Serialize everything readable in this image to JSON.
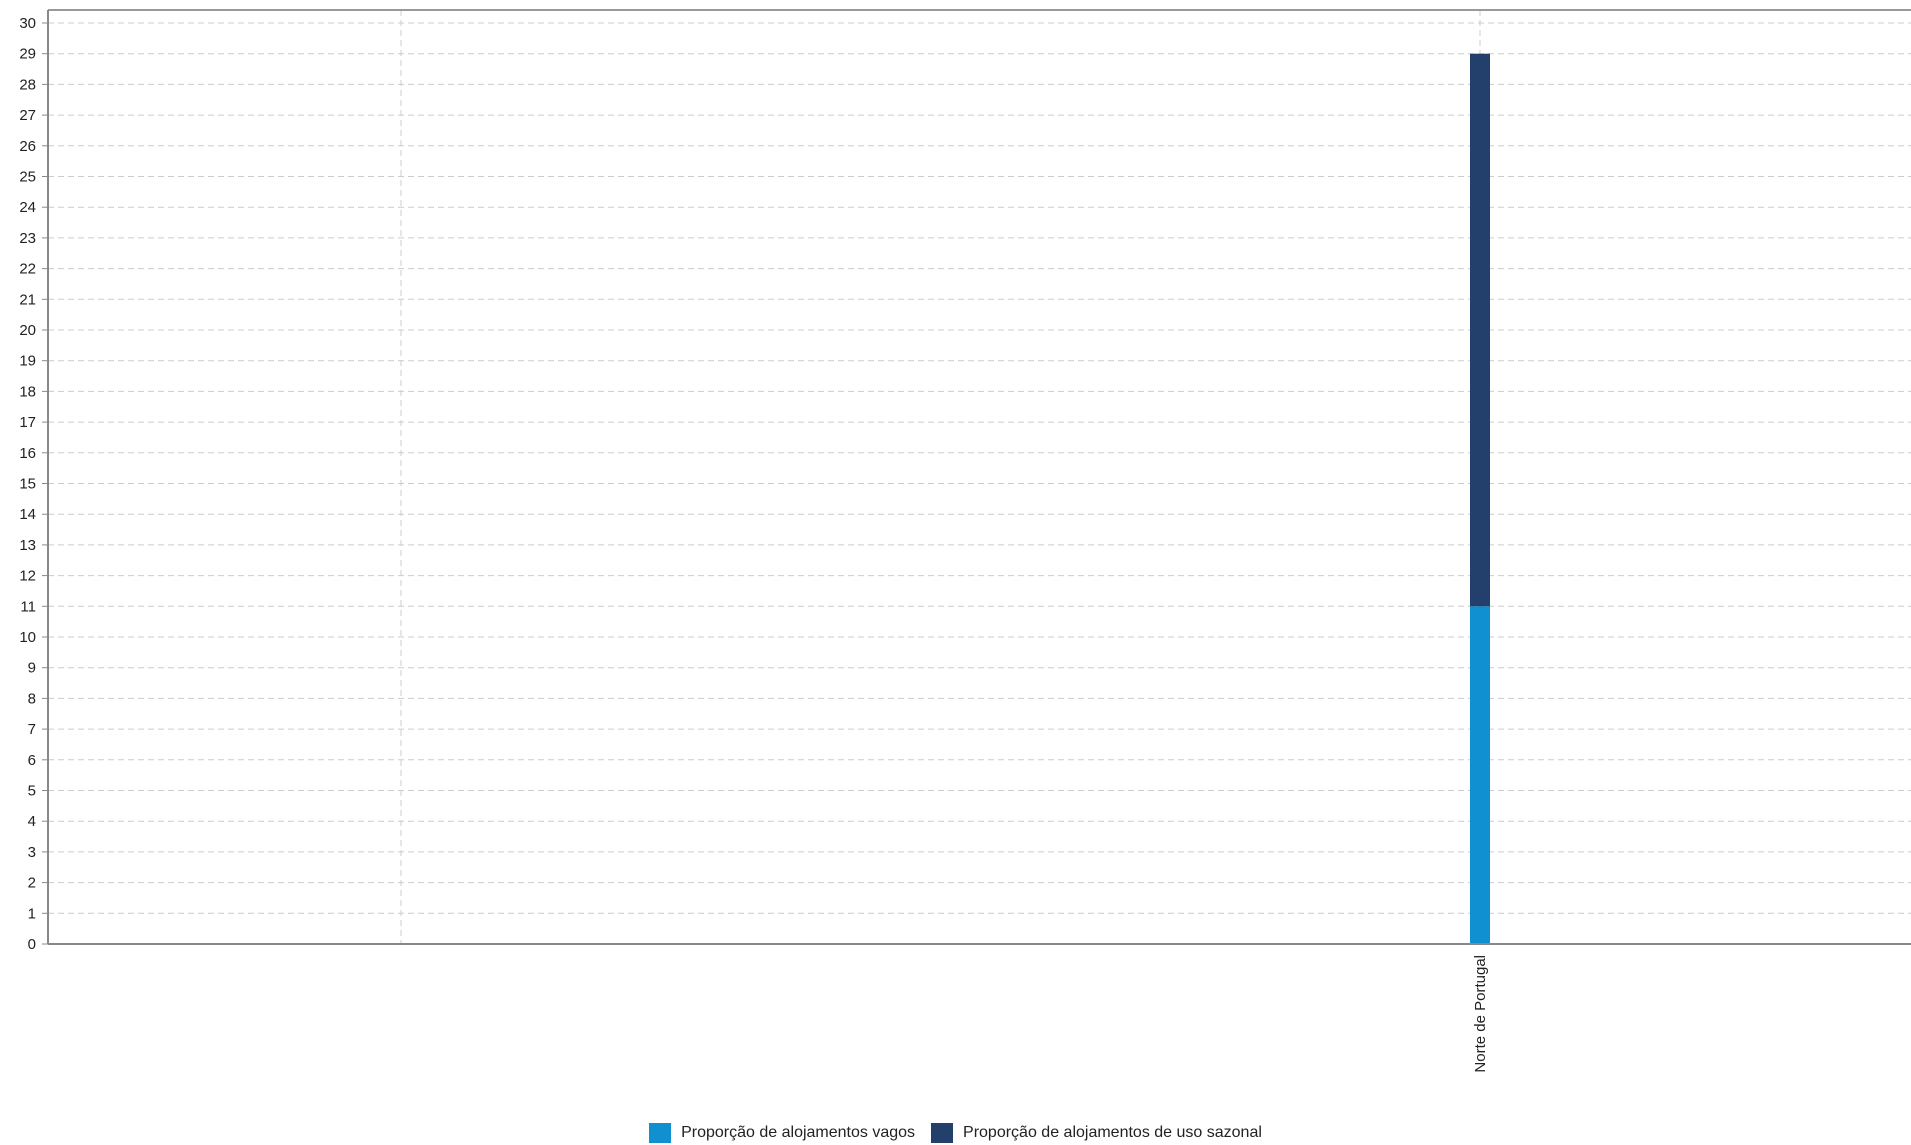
{
  "chart_data": {
    "type": "bar",
    "stacked": true,
    "categories": [
      "",
      "Norte de Portugal"
    ],
    "series": [
      {
        "name": "Proporção de alojamentos vagos",
        "values": [
          null,
          11
        ],
        "color": "#1090d0"
      },
      {
        "name": "Proporção de alojamentos de uso sazonal",
        "values": [
          null,
          18
        ],
        "color": "#233f6b"
      }
    ],
    "title": "",
    "xlabel": "",
    "ylabel": "",
    "ylim": [
      0,
      30
    ],
    "yticks": [
      0,
      1,
      2,
      3,
      4,
      5,
      6,
      7,
      8,
      9,
      10,
      11,
      12,
      13,
      14,
      15,
      16,
      17,
      18,
      19,
      20,
      21,
      22,
      23,
      24,
      25,
      26,
      27,
      28,
      29,
      30
    ],
    "grid": true,
    "legend_position": "bottom"
  }
}
